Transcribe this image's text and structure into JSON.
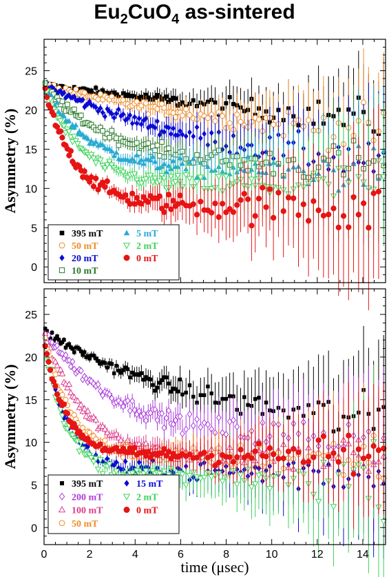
{
  "title": {
    "main": "Eu",
    "sub1": "2",
    "mid": "CuO",
    "sub2": "4",
    "rest": " as-sintered"
  },
  "chart_data": [
    {
      "type": "scatter",
      "xlabel": "",
      "ylabel": "Asymmetry (%)",
      "xlim": [
        0,
        15
      ],
      "ylim": [
        -2,
        29
      ],
      "xticks": [
        0,
        2,
        4,
        6,
        8,
        10,
        12,
        14
      ],
      "yticks": [
        0,
        5,
        10,
        15,
        20,
        25
      ],
      "legend_position": "bottom-left",
      "series": [
        {
          "name": "395 mT",
          "color": "#000000",
          "marker": "square-filled",
          "A0": 23.2,
          "Ainf": 14,
          "lambda": 0.045,
          "beta": 1,
          "jitter": 0.3,
          "err0": 0.25,
          "errk": 0.18
        },
        {
          "name": "50 mT",
          "color": "#f08c28",
          "marker": "circle-open",
          "A0": 23.2,
          "Ainf": 16,
          "lambda": 0.11,
          "beta": 1,
          "jitter": 0.35,
          "err0": 0.3,
          "errk": 0.2
        },
        {
          "name": "20 mT",
          "color": "#0a0ad2",
          "marker": "diamond-filled",
          "A0": 23.2,
          "Ainf": 12,
          "lambda": 0.13,
          "beta": 1,
          "jitter": 0.45,
          "err0": 0.3,
          "errk": 0.22
        },
        {
          "name": "10 mT",
          "color": "#287828",
          "marker": "square-open",
          "A0": 23.0,
          "Ainf": 12.8,
          "lambda": 0.32,
          "beta": 1,
          "jitter": 0.45,
          "err0": 0.3,
          "errk": 0.22
        },
        {
          "name": "5 mT",
          "color": "#28aad2",
          "marker": "triangle-filled",
          "A0": 23.0,
          "Ainf": 12.2,
          "lambda": 0.5,
          "beta": 1,
          "jitter": 0.45,
          "err0": 0.3,
          "errk": 0.22
        },
        {
          "name": "2 mT",
          "color": "#3cd25a",
          "marker": "triangle-down-open",
          "A0": 23.0,
          "Ainf": 10.3,
          "lambda": 0.6,
          "beta": 1,
          "jitter": 0.5,
          "err0": 0.3,
          "errk": 0.23
        },
        {
          "name": "0 mT",
          "color": "#e61414",
          "marker": "circle-filled",
          "A0": 22.8,
          "Ainf": 7.8,
          "lambda": 0.72,
          "beta": 1,
          "jitter": 0.6,
          "err0": 0.35,
          "errk": 0.3,
          "tmax": 14.8
        }
      ]
    },
    {
      "type": "scatter",
      "xlabel": "time (μsec)",
      "ylabel": "Asymmetry (%)",
      "xlim": [
        0,
        15
      ],
      "ylim": [
        -2,
        28
      ],
      "xticks": [
        0,
        2,
        4,
        6,
        8,
        10,
        12,
        14
      ],
      "yticks": [
        0,
        5,
        10,
        15,
        20,
        25
      ],
      "legend_position": "bottom-left",
      "series": [
        {
          "name": "395 mT",
          "color": "#000000",
          "marker": "cross-filled",
          "A0": 23.0,
          "Ainf": 11,
          "lambda": 0.14,
          "beta": 1,
          "jitter": 0.45,
          "err0": 0.3,
          "errk": 0.22
        },
        {
          "name": "200 mT",
          "color": "#aa3cdc",
          "marker": "diamond-open",
          "A0": 23.2,
          "Ainf": 10.5,
          "lambda": 0.32,
          "beta": 1,
          "jitter": 0.45,
          "err0": 0.3,
          "errk": 0.22
        },
        {
          "name": "100 mT",
          "color": "#dc3c8c",
          "marker": "triangle-open",
          "A0": 22.8,
          "Ainf": 8.2,
          "lambda": 0.55,
          "beta": 1,
          "jitter": 0.45,
          "err0": 0.3,
          "errk": 0.22
        },
        {
          "name": "50 mT",
          "color": "#f08c28",
          "marker": "circle-open",
          "A0": 22.5,
          "Ainf": 8.2,
          "lambda": 0.85,
          "beta": 1,
          "jitter": 0.45,
          "err0": 0.3,
          "errk": 0.22
        },
        {
          "name": "15 mT",
          "color": "#0a0ad2",
          "marker": "diamond-filled",
          "A0": 22.0,
          "Ainf": 6.5,
          "lambda": 0.95,
          "beta": 1,
          "jitter": 0.5,
          "err0": 0.3,
          "errk": 0.23
        },
        {
          "name": "2 mT",
          "color": "#3cd25a",
          "marker": "triangle-down-open",
          "A0": 22.0,
          "Ainf": 5.8,
          "lambda": 0.95,
          "beta": 1,
          "jitter": 0.6,
          "err0": 0.3,
          "errk": 0.25
        },
        {
          "name": "0 mT",
          "color": "#e61414",
          "marker": "circle-filled",
          "A0": 22.0,
          "Ainf": 8.5,
          "lambda": 1.05,
          "beta": 1,
          "jitter": 0.35,
          "err0": 0.3,
          "errk": 0.2
        }
      ]
    }
  ]
}
